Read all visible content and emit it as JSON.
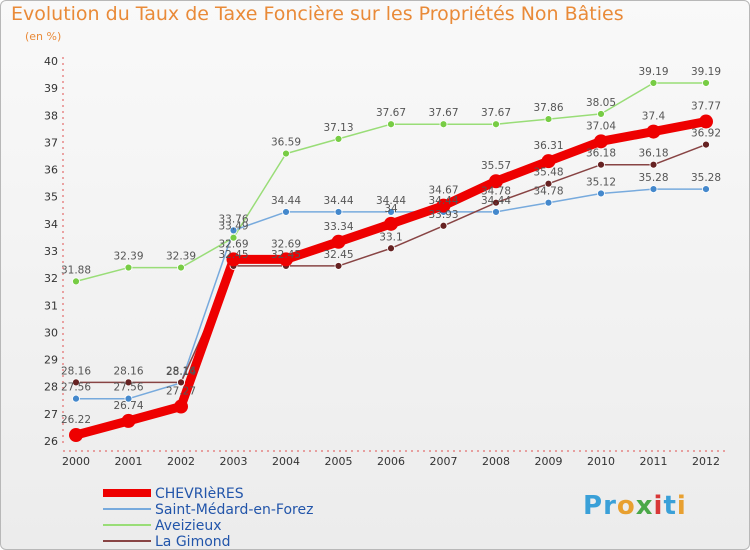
{
  "page": {
    "title": "Evolution du Taux de Taxe Foncière sur les Propriétés Non Bâties",
    "unit": "(en %)"
  },
  "logo": {
    "letters": [
      "P",
      "r",
      "o",
      "x",
      "i",
      "t",
      "i"
    ],
    "colors": [
      "#3aa0d8",
      "#3aa0d8",
      "#e8a030",
      "#4aa848",
      "#d83838",
      "#3aa0d8",
      "#e8a030"
    ]
  },
  "chart_data": {
    "type": "line",
    "title": "Evolution du Taux de Taxe Foncière sur les Propriétés Non Bâties",
    "ylabel": "(en %)",
    "xlabel": "",
    "categories": [
      "2000",
      "2001",
      "2002",
      "2003",
      "2004",
      "2005",
      "2006",
      "2007",
      "2008",
      "2009",
      "2010",
      "2011",
      "2012"
    ],
    "ylim": [
      26,
      40
    ],
    "yticks": [
      "26",
      "27",
      "28",
      "29",
      "30",
      "31",
      "32",
      "33",
      "34",
      "35",
      "36",
      "37",
      "38",
      "39",
      "40"
    ],
    "series": [
      {
        "name": "Aveizieux",
        "color": "#99dd77",
        "marker": "#77cc44",
        "values": [
          31.88,
          32.39,
          32.39,
          33.49,
          36.59,
          37.13,
          37.67,
          37.67,
          37.67,
          37.86,
          38.05,
          39.19,
          39.19
        ],
        "labels": [
          "31.88",
          "32.39",
          "32.39",
          "33.49",
          "36.59",
          "37.13",
          "37.67",
          "37.67",
          "37.67",
          "37.86",
          "38.05",
          "39.19",
          "39.19"
        ]
      },
      {
        "name": "Saint-Médard-en-Forez",
        "color": "#77aadd",
        "marker": "#4488cc",
        "values": [
          27.56,
          27.56,
          28.14,
          33.76,
          34.44,
          34.44,
          34.44,
          34.44,
          34.44,
          34.78,
          35.12,
          35.28,
          35.28
        ],
        "labels": [
          "27.56",
          "27.56",
          "28.14",
          "33.76",
          "34.44",
          "34.44",
          "34.44",
          "34.44",
          "34.44",
          "34.78",
          "35.12",
          "35.28",
          "35.28"
        ]
      },
      {
        "name": "La Gimond",
        "color": "#884444",
        "marker": "#662222",
        "values": [
          28.16,
          28.16,
          28.16,
          32.45,
          32.45,
          32.45,
          33.1,
          33.93,
          34.78,
          35.48,
          36.18,
          36.18,
          36.92
        ],
        "labels": [
          "28.16",
          "28.16",
          "28.16",
          "32.45",
          "32.45",
          "32.45",
          "33.1",
          "33.93",
          "34.78",
          "35.48",
          "36.18",
          "36.18",
          "36.92"
        ]
      },
      {
        "name": "CHEVRIèRES",
        "color": "#ee0000",
        "marker": "#ee0000",
        "values": [
          26.22,
          26.74,
          27.27,
          32.69,
          32.69,
          33.34,
          34,
          34.67,
          35.57,
          36.31,
          37.04,
          37.4,
          37.77
        ],
        "labels": [
          "26.22",
          "26.74",
          "27.27",
          "32.69",
          "32.69",
          "33.34",
          "34",
          "34.67",
          "35.57",
          "36.31",
          "37.04",
          "37.4",
          "37.77"
        ]
      }
    ],
    "legend": [
      "CHEVRIèRES",
      "Saint-Médard-en-Forez",
      "Aveizieux",
      "La Gimond"
    ],
    "legend_colors": [
      "#ee0000",
      "#77aadd",
      "#99dd77",
      "#884444"
    ],
    "grid": false,
    "legend_position": "bottom-left"
  }
}
